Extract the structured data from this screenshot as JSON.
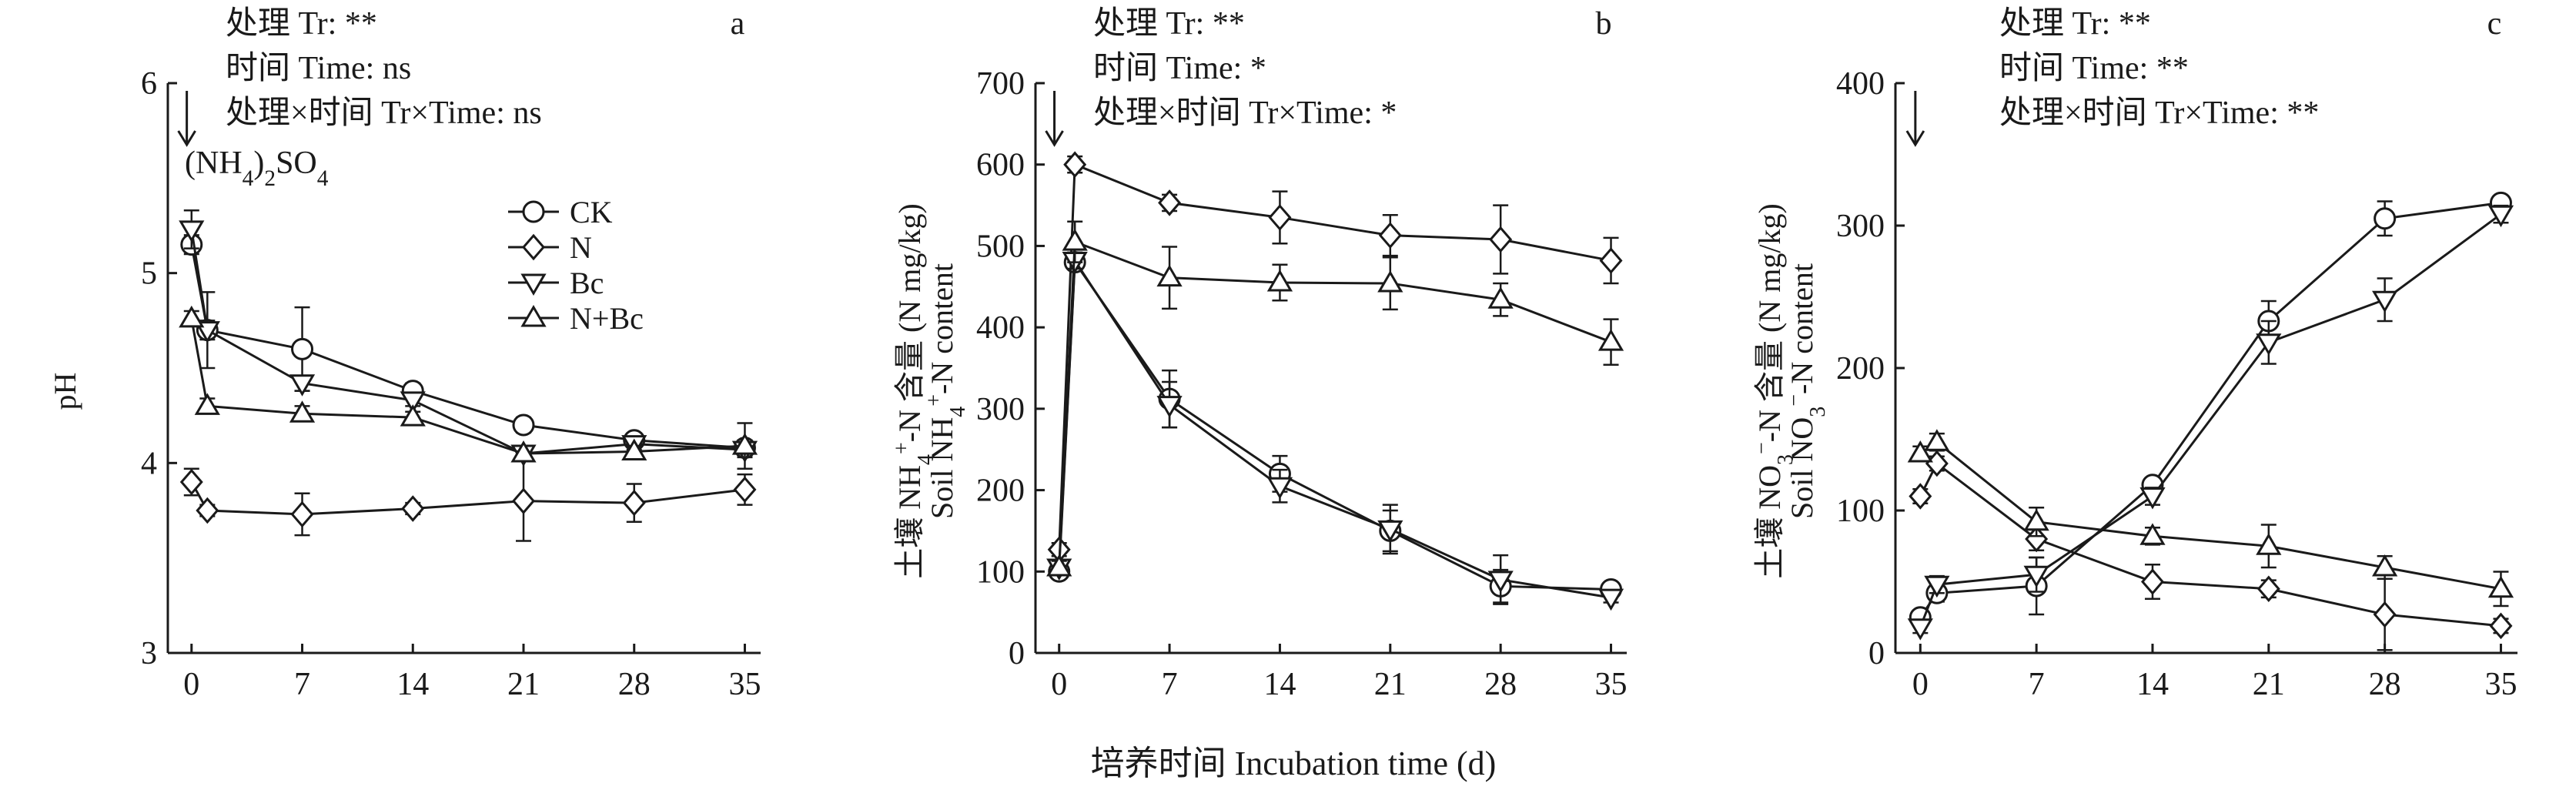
{
  "xlabel_shared": "培养时间 Incubation time (d)",
  "legend": [
    "CK",
    "N",
    "Bc",
    "N+Bc"
  ],
  "chart_data": [
    {
      "type": "line",
      "letter": "a",
      "annotations": [
        "处理 Tr: **",
        "时间 Time: ns",
        "处理×时间 Tr×Time: ns"
      ],
      "arrow_label": "(NH4)2SO4",
      "ylabel_cn": "",
      "ylabel_en": "pH",
      "xlim": [
        -1.5,
        36
      ],
      "ylim": [
        3,
        6
      ],
      "yticks": [
        3,
        4,
        5,
        6
      ],
      "xticks": [
        0,
        7,
        14,
        21,
        28,
        35
      ],
      "series": [
        {
          "name": "CK",
          "marker": "circle",
          "x": [
            0,
            1,
            7,
            14,
            21,
            28,
            35
          ],
          "y": [
            5.15,
            4.7,
            4.6,
            4.38,
            4.2,
            4.12,
            4.08
          ],
          "err": [
            0.05,
            0.05,
            0.22,
            0.04,
            0.04,
            0.03,
            0.04
          ]
        },
        {
          "name": "N",
          "marker": "diamond",
          "x": [
            0,
            1,
            7,
            14,
            21,
            28,
            35
          ],
          "y": [
            3.9,
            3.75,
            3.73,
            3.76,
            3.8,
            3.79,
            3.86
          ],
          "err": [
            0.07,
            0.03,
            0.11,
            0.03,
            0.21,
            0.1,
            0.08
          ]
        },
        {
          "name": "Bc",
          "marker": "tri-down",
          "x": [
            0,
            1,
            7,
            14,
            21,
            28,
            35
          ],
          "y": [
            5.23,
            4.7,
            4.42,
            4.33,
            4.05,
            4.1,
            4.07
          ],
          "err": [
            0.1,
            0.2,
            0.04,
            0.03,
            0.04,
            0.03,
            0.04
          ]
        },
        {
          "name": "N+Bc",
          "marker": "tri-up",
          "x": [
            0,
            1,
            7,
            14,
            21,
            28,
            35
          ],
          "y": [
            4.76,
            4.3,
            4.26,
            4.24,
            4.05,
            4.06,
            4.09
          ],
          "err": [
            0.04,
            0.04,
            0.04,
            0.03,
            0.04,
            0.03,
            0.12
          ]
        }
      ]
    },
    {
      "type": "line",
      "letter": "b",
      "annotations": [
        "处理 Tr: **",
        "时间 Time: *",
        "处理×时间 Tr×Time: *"
      ],
      "arrow_label": "",
      "ylabel_cn": "土壤 NH4+-N 含量 (N mg/kg)",
      "ylabel_en": "Soil NH4+-N content",
      "xlim": [
        -1.5,
        36
      ],
      "ylim": [
        0,
        700
      ],
      "yticks": [
        0,
        100,
        200,
        300,
        400,
        500,
        600,
        700
      ],
      "xticks": [
        0,
        7,
        14,
        21,
        28,
        35
      ],
      "series": [
        {
          "name": "CK",
          "marker": "circle",
          "x": [
            0,
            1,
            7,
            14,
            21,
            28,
            35
          ],
          "y": [
            100,
            480,
            312,
            220,
            150,
            82,
            78
          ],
          "err": [
            6,
            8,
            35,
            22,
            25,
            20,
            6
          ]
        },
        {
          "name": "N",
          "marker": "diamond",
          "x": [
            0,
            1,
            7,
            14,
            21,
            28,
            35
          ],
          "y": [
            127,
            600,
            553,
            535,
            513,
            508,
            482
          ],
          "err": [
            8,
            10,
            10,
            32,
            25,
            42,
            28
          ]
        },
        {
          "name": "Bc",
          "marker": "tri-down",
          "x": [
            0,
            1,
            7,
            14,
            21,
            28,
            35
          ],
          "y": [
            105,
            482,
            305,
            205,
            152,
            90,
            68
          ],
          "err": [
            8,
            10,
            28,
            20,
            30,
            30,
            6
          ]
        },
        {
          "name": "N+Bc",
          "marker": "tri-up",
          "x": [
            0,
            1,
            7,
            14,
            21,
            28,
            35
          ],
          "y": [
            105,
            505,
            461,
            455,
            454,
            434,
            382
          ],
          "err": [
            8,
            25,
            38,
            22,
            32,
            20,
            28
          ]
        }
      ]
    },
    {
      "type": "line",
      "letter": "c",
      "annotations": [
        "处理 Tr: **",
        "时间 Time: **",
        "处理×时间 Tr×Time: **"
      ],
      "arrow_label": "",
      "ylabel_cn": "土壤 NO3−-N 含量 (N mg/kg)",
      "ylabel_en": "Soil NO3−-N content",
      "xlim": [
        -1.5,
        36
      ],
      "ylim": [
        0,
        400
      ],
      "yticks": [
        0,
        100,
        200,
        300,
        400
      ],
      "xticks": [
        0,
        7,
        14,
        21,
        28,
        35
      ],
      "series": [
        {
          "name": "CK",
          "marker": "circle",
          "x": [
            0,
            1,
            7,
            14,
            21,
            28,
            35
          ],
          "y": [
            25,
            42,
            47,
            118,
            233,
            305,
            316
          ],
          "err": [
            4,
            6,
            20,
            5,
            14,
            12,
            5
          ]
        },
        {
          "name": "N",
          "marker": "diamond",
          "x": [
            0,
            1,
            7,
            14,
            21,
            28,
            35
          ],
          "y": [
            110,
            133,
            80,
            50,
            45,
            27,
            19
          ],
          "err": [
            5,
            5,
            8,
            12,
            6,
            25,
            5
          ]
        },
        {
          "name": "Bc",
          "marker": "tri-down",
          "x": [
            0,
            1,
            7,
            14,
            21,
            28,
            35
          ],
          "y": [
            18,
            48,
            55,
            110,
            218,
            248,
            308
          ],
          "err": [
            4,
            6,
            12,
            6,
            15,
            15,
            6
          ]
        },
        {
          "name": "N+Bc",
          "marker": "tri-up",
          "x": [
            0,
            1,
            7,
            14,
            21,
            28,
            35
          ],
          "y": [
            140,
            148,
            92,
            82,
            75,
            60,
            45
          ],
          "err": [
            5,
            6,
            10,
            6,
            15,
            8,
            12
          ]
        }
      ]
    }
  ]
}
